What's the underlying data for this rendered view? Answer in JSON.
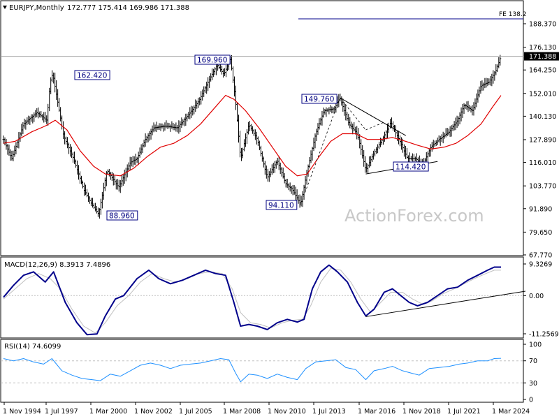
{
  "main_panel": {
    "header": {
      "symbol": "EURJPY,Monthly",
      "ohlc": "172.777 175.414 169.986 171.388"
    },
    "watermark": "ActionForex.com",
    "last_price": "171.388",
    "y_ticks": [
      "188.370",
      "176.130",
      "164.250",
      "152.010",
      "140.130",
      "127.890",
      "116.010",
      "103.770",
      "91.890",
      "79.650",
      "67.770"
    ],
    "annotations": [
      {
        "text": "FE 138.2"
      },
      {
        "text": "169.960"
      },
      {
        "text": "162.420"
      },
      {
        "text": "149.760"
      },
      {
        "text": "114.420"
      },
      {
        "text": "94.110"
      },
      {
        "text": "88.960"
      }
    ]
  },
  "macd_panel": {
    "label": "MACD(12,26,9) 8.3913 7.4896",
    "y_ticks": [
      "9.3269",
      "0.00",
      "-11.2569"
    ]
  },
  "rsi_panel": {
    "label": "RSI(14) 74.6099",
    "y_ticks": [
      "100",
      "70",
      "30",
      "0"
    ]
  },
  "x_axis": {
    "labels": [
      "1 Nov 1994",
      "1 Jul 1997",
      "1 Mar 2000",
      "1 Nov 2002",
      "1 Jul 2005",
      "1 Mar 2008",
      "1 Nov 2010",
      "1 Jul 2013",
      "1 Mar 2016",
      "1 Nov 2018",
      "1 Jul 2021",
      "1 Mar 2024"
    ]
  },
  "colors": {
    "price_bars": "#000000",
    "ma_line": "#e00000",
    "macd_line": "#00008b",
    "signal_line": "#c0c0c0",
    "rsi_line": "#1e90ff",
    "label_box_border": "#000080",
    "label_text": "#000080"
  },
  "chart_data": {
    "type": "line",
    "title": "EURJPY,Monthly",
    "series": [
      {
        "name": "EURJPY",
        "points": [
          [
            1994.8,
            128
          ],
          [
            1995.3,
            118
          ],
          [
            1996.0,
            136
          ],
          [
            1996.8,
            142
          ],
          [
            1997.4,
            138
          ],
          [
            1997.6,
            158
          ],
          [
            1997.75,
            162.42
          ],
          [
            1998.4,
            130
          ],
          [
            1999.0,
            118
          ],
          [
            1999.6,
            102
          ],
          [
            2000.1,
            94
          ],
          [
            2000.5,
            89.0
          ],
          [
            2001.0,
            112
          ],
          [
            2001.7,
            103
          ],
          [
            2002.4,
            116
          ],
          [
            2002.8,
            118
          ],
          [
            2003.3,
            128
          ],
          [
            2003.8,
            134
          ],
          [
            2004.5,
            135
          ],
          [
            2005.2,
            134
          ],
          [
            2005.9,
            141
          ],
          [
            2006.5,
            148
          ],
          [
            2007.0,
            157
          ],
          [
            2007.6,
            167
          ],
          [
            2008.0,
            162
          ],
          [
            2008.4,
            169.96
          ],
          [
            2008.7,
            148
          ],
          [
            2009.0,
            118
          ],
          [
            2009.5,
            136
          ],
          [
            2010.0,
            128
          ],
          [
            2010.6,
            108
          ],
          [
            2011.2,
            117
          ],
          [
            2011.7,
            105
          ],
          [
            2012.1,
            102
          ],
          [
            2012.6,
            94.11
          ],
          [
            2013.0,
            112
          ],
          [
            2013.5,
            131
          ],
          [
            2014.0,
            143
          ],
          [
            2014.6,
            144
          ],
          [
            2014.95,
            149.76
          ],
          [
            2015.5,
            136
          ],
          [
            2016.0,
            131
          ],
          [
            2016.5,
            112
          ],
          [
            2017.0,
            121
          ],
          [
            2017.5,
            128
          ],
          [
            2018.0,
            137
          ],
          [
            2018.6,
            126
          ],
          [
            2019.0,
            118
          ],
          [
            2019.5,
            118
          ],
          [
            2019.9,
            114.42
          ],
          [
            2020.4,
            124
          ],
          [
            2020.9,
            128
          ],
          [
            2021.5,
            132
          ],
          [
            2022.0,
            138
          ],
          [
            2022.4,
            146
          ],
          [
            2022.9,
            143
          ],
          [
            2023.4,
            156
          ],
          [
            2023.9,
            158
          ],
          [
            2024.3,
            164
          ],
          [
            2024.6,
            171.388
          ]
        ]
      },
      {
        "name": "Moving average",
        "points": [
          [
            1994.8,
            126
          ],
          [
            1995.5,
            127
          ],
          [
            1996.5,
            132
          ],
          [
            1997.3,
            135
          ],
          [
            1997.9,
            138
          ],
          [
            1998.6,
            133
          ],
          [
            1999.4,
            122
          ],
          [
            2000.2,
            114
          ],
          [
            2000.9,
            110
          ],
          [
            2001.8,
            109
          ],
          [
            2002.6,
            113
          ],
          [
            2003.4,
            119
          ],
          [
            2004.2,
            124
          ],
          [
            2005.0,
            126
          ],
          [
            2005.8,
            130
          ],
          [
            2006.6,
            136
          ],
          [
            2007.4,
            144
          ],
          [
            2008.1,
            151
          ],
          [
            2008.6,
            149
          ],
          [
            2009.3,
            143
          ],
          [
            2010.1,
            134
          ],
          [
            2010.9,
            124
          ],
          [
            2011.7,
            114
          ],
          [
            2012.4,
            109
          ],
          [
            2013.0,
            110
          ],
          [
            2013.7,
            119
          ],
          [
            2014.4,
            127
          ],
          [
            2015.1,
            131
          ],
          [
            2015.9,
            131
          ],
          [
            2016.6,
            128
          ],
          [
            2017.4,
            128
          ],
          [
            2018.1,
            129
          ],
          [
            2018.9,
            127
          ],
          [
            2019.6,
            125
          ],
          [
            2020.4,
            123
          ],
          [
            2021.2,
            124
          ],
          [
            2021.9,
            126
          ],
          [
            2022.6,
            130
          ],
          [
            2023.4,
            136
          ],
          [
            2024.1,
            145
          ],
          [
            2024.6,
            151
          ]
        ]
      }
    ],
    "macd": {
      "series": [
        {
          "name": "MACD",
          "points": [
            [
              1994.8,
              -0.5
            ],
            [
              1995.4,
              3
            ],
            [
              1996.0,
              6
            ],
            [
              1996.6,
              7
            ],
            [
              1997.3,
              4
            ],
            [
              1997.8,
              7
            ],
            [
              1998.5,
              -2
            ],
            [
              1999.2,
              -8
            ],
            [
              1999.8,
              -11.5
            ],
            [
              2000.4,
              -11.3
            ],
            [
              2000.9,
              -6
            ],
            [
              2001.5,
              -1
            ],
            [
              2002.0,
              0
            ],
            [
              2002.8,
              5
            ],
            [
              2003.5,
              7.5
            ],
            [
              2004.1,
              5
            ],
            [
              2004.8,
              3.5
            ],
            [
              2005.5,
              4.5
            ],
            [
              2006.2,
              6
            ],
            [
              2006.9,
              7.5
            ],
            [
              2007.5,
              6.5
            ],
            [
              2008.1,
              6
            ],
            [
              2008.6,
              -2
            ],
            [
              2009.0,
              -9
            ],
            [
              2009.5,
              -8.5
            ],
            [
              2010.0,
              -9
            ],
            [
              2010.6,
              -10
            ],
            [
              2011.2,
              -8
            ],
            [
              2011.8,
              -7
            ],
            [
              2012.4,
              -7.8
            ],
            [
              2012.8,
              -7
            ],
            [
              2013.3,
              2
            ],
            [
              2013.8,
              7
            ],
            [
              2014.3,
              9
            ],
            [
              2014.8,
              7
            ],
            [
              2015.4,
              4
            ],
            [
              2016.0,
              -2
            ],
            [
              2016.5,
              -6
            ],
            [
              2017.0,
              -4
            ],
            [
              2017.6,
              1
            ],
            [
              2018.1,
              2
            ],
            [
              2018.6,
              0
            ],
            [
              2019.1,
              -2
            ],
            [
              2019.6,
              -3
            ],
            [
              2020.2,
              -2
            ],
            [
              2020.8,
              0
            ],
            [
              2021.4,
              2
            ],
            [
              2022.0,
              2.5
            ],
            [
              2022.6,
              4.5
            ],
            [
              2023.2,
              6
            ],
            [
              2023.8,
              7.5
            ],
            [
              2024.2,
              8.4
            ],
            [
              2024.6,
              8.4
            ]
          ]
        },
        {
          "name": "Signal",
          "points": [
            [
              1994.8,
              -1
            ],
            [
              1995.5,
              2
            ],
            [
              1996.2,
              5
            ],
            [
              1996.9,
              6.5
            ],
            [
              1997.6,
              5
            ],
            [
              1998.2,
              2
            ],
            [
              1998.9,
              -4
            ],
            [
              1999.6,
              -9
            ],
            [
              2000.3,
              -11
            ],
            [
              2000.9,
              -8
            ],
            [
              2001.6,
              -3
            ],
            [
              2002.3,
              0
            ],
            [
              2003.0,
              4
            ],
            [
              2003.7,
              6.5
            ],
            [
              2004.4,
              5
            ],
            [
              2005.1,
              4
            ],
            [
              2005.8,
              5
            ],
            [
              2006.5,
              6.5
            ],
            [
              2007.2,
              7
            ],
            [
              2007.9,
              6.5
            ],
            [
              2008.5,
              2
            ],
            [
              2009.0,
              -5
            ],
            [
              2009.6,
              -8
            ],
            [
              2010.2,
              -8.5
            ],
            [
              2010.8,
              -9.5
            ],
            [
              2011.5,
              -8
            ],
            [
              2012.1,
              -7.3
            ],
            [
              2012.7,
              -7
            ],
            [
              2013.2,
              -3
            ],
            [
              2013.8,
              4
            ],
            [
              2014.4,
              8
            ],
            [
              2015.0,
              7.5
            ],
            [
              2015.6,
              4
            ],
            [
              2016.2,
              -1
            ],
            [
              2016.8,
              -5
            ],
            [
              2017.4,
              -2
            ],
            [
              2018.0,
              1
            ],
            [
              2018.7,
              1
            ],
            [
              2019.3,
              -1
            ],
            [
              2019.9,
              -2.5
            ],
            [
              2020.5,
              -1.5
            ],
            [
              2021.1,
              0.5
            ],
            [
              2021.8,
              2
            ],
            [
              2022.4,
              3.5
            ],
            [
              2023.0,
              5
            ],
            [
              2023.7,
              6.5
            ],
            [
              2024.2,
              7.5
            ],
            [
              2024.6,
              7.49
            ]
          ]
        }
      ]
    },
    "rsi": {
      "series": [
        {
          "name": "RSI",
          "points": [
            [
              1994.8,
              74
            ],
            [
              1995.4,
              70
            ],
            [
              1996.0,
              74
            ],
            [
              1996.6,
              68
            ],
            [
              1997.2,
              64
            ],
            [
              1997.7,
              74
            ],
            [
              1998.3,
              52
            ],
            [
              1998.9,
              44
            ],
            [
              1999.5,
              38
            ],
            [
              2000.1,
              36
            ],
            [
              2000.6,
              34
            ],
            [
              2001.2,
              46
            ],
            [
              2001.8,
              42
            ],
            [
              2002.4,
              52
            ],
            [
              2003.0,
              62
            ],
            [
              2003.6,
              66
            ],
            [
              2004.2,
              62
            ],
            [
              2004.8,
              56
            ],
            [
              2005.4,
              62
            ],
            [
              2006.0,
              64
            ],
            [
              2006.6,
              66
            ],
            [
              2007.2,
              70
            ],
            [
              2007.8,
              74
            ],
            [
              2008.3,
              72
            ],
            [
              2008.7,
              48
            ],
            [
              2009.0,
              32
            ],
            [
              2009.5,
              46
            ],
            [
              2010.0,
              44
            ],
            [
              2010.6,
              38
            ],
            [
              2011.2,
              46
            ],
            [
              2011.8,
              40
            ],
            [
              2012.4,
              36
            ],
            [
              2012.9,
              56
            ],
            [
              2013.5,
              68
            ],
            [
              2014.1,
              70
            ],
            [
              2014.7,
              72
            ],
            [
              2015.3,
              58
            ],
            [
              2015.9,
              54
            ],
            [
              2016.5,
              36
            ],
            [
              2017.0,
              52
            ],
            [
              2017.6,
              56
            ],
            [
              2018.1,
              60
            ],
            [
              2018.7,
              52
            ],
            [
              2019.2,
              48
            ],
            [
              2019.7,
              44
            ],
            [
              2020.3,
              56
            ],
            [
              2020.9,
              58
            ],
            [
              2021.5,
              60
            ],
            [
              2022.1,
              64
            ],
            [
              2022.6,
              66
            ],
            [
              2023.2,
              70
            ],
            [
              2023.8,
              70
            ],
            [
              2024.2,
              74
            ],
            [
              2024.6,
              74.6
            ]
          ]
        }
      ]
    },
    "xlabel": "",
    "ylabel": "",
    "grid": false
  }
}
